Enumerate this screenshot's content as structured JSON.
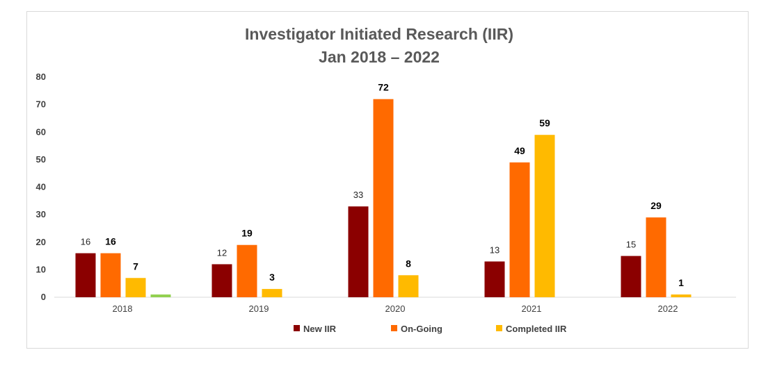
{
  "chart_data": {
    "type": "bar",
    "title": [
      "Investigator Initiated Research (IIR)",
      "Jan 2018 – 2022"
    ],
    "categories": [
      "2018",
      "2019",
      "2020",
      "2021",
      "2022"
    ],
    "yticks": [
      "0",
      "10",
      "20",
      "30",
      "40",
      "50",
      "60",
      "70",
      "80"
    ],
    "ylim": [
      0,
      80
    ],
    "series": [
      {
        "name": "New IIR",
        "color": "#8B0000",
        "values": [
          16,
          12,
          33,
          13,
          15
        ],
        "labels": [
          "16",
          "12",
          "33",
          "13",
          "15"
        ]
      },
      {
        "name": "On-Going",
        "color": "#FF6A00",
        "values": [
          16,
          19,
          72,
          49,
          29
        ],
        "labels": [
          "16",
          "19",
          "72",
          "49",
          "29"
        ]
      },
      {
        "name": "Completed IIR",
        "color": "#FFBA00",
        "values": [
          7,
          3,
          8,
          59,
          1
        ],
        "labels": [
          "7",
          "3",
          "8",
          "59",
          "1"
        ]
      },
      {
        "color": "#92D050",
        "values": [
          1,
          null,
          null,
          null,
          null
        ]
      }
    ],
    "legend": "bottom",
    "grid": false
  }
}
